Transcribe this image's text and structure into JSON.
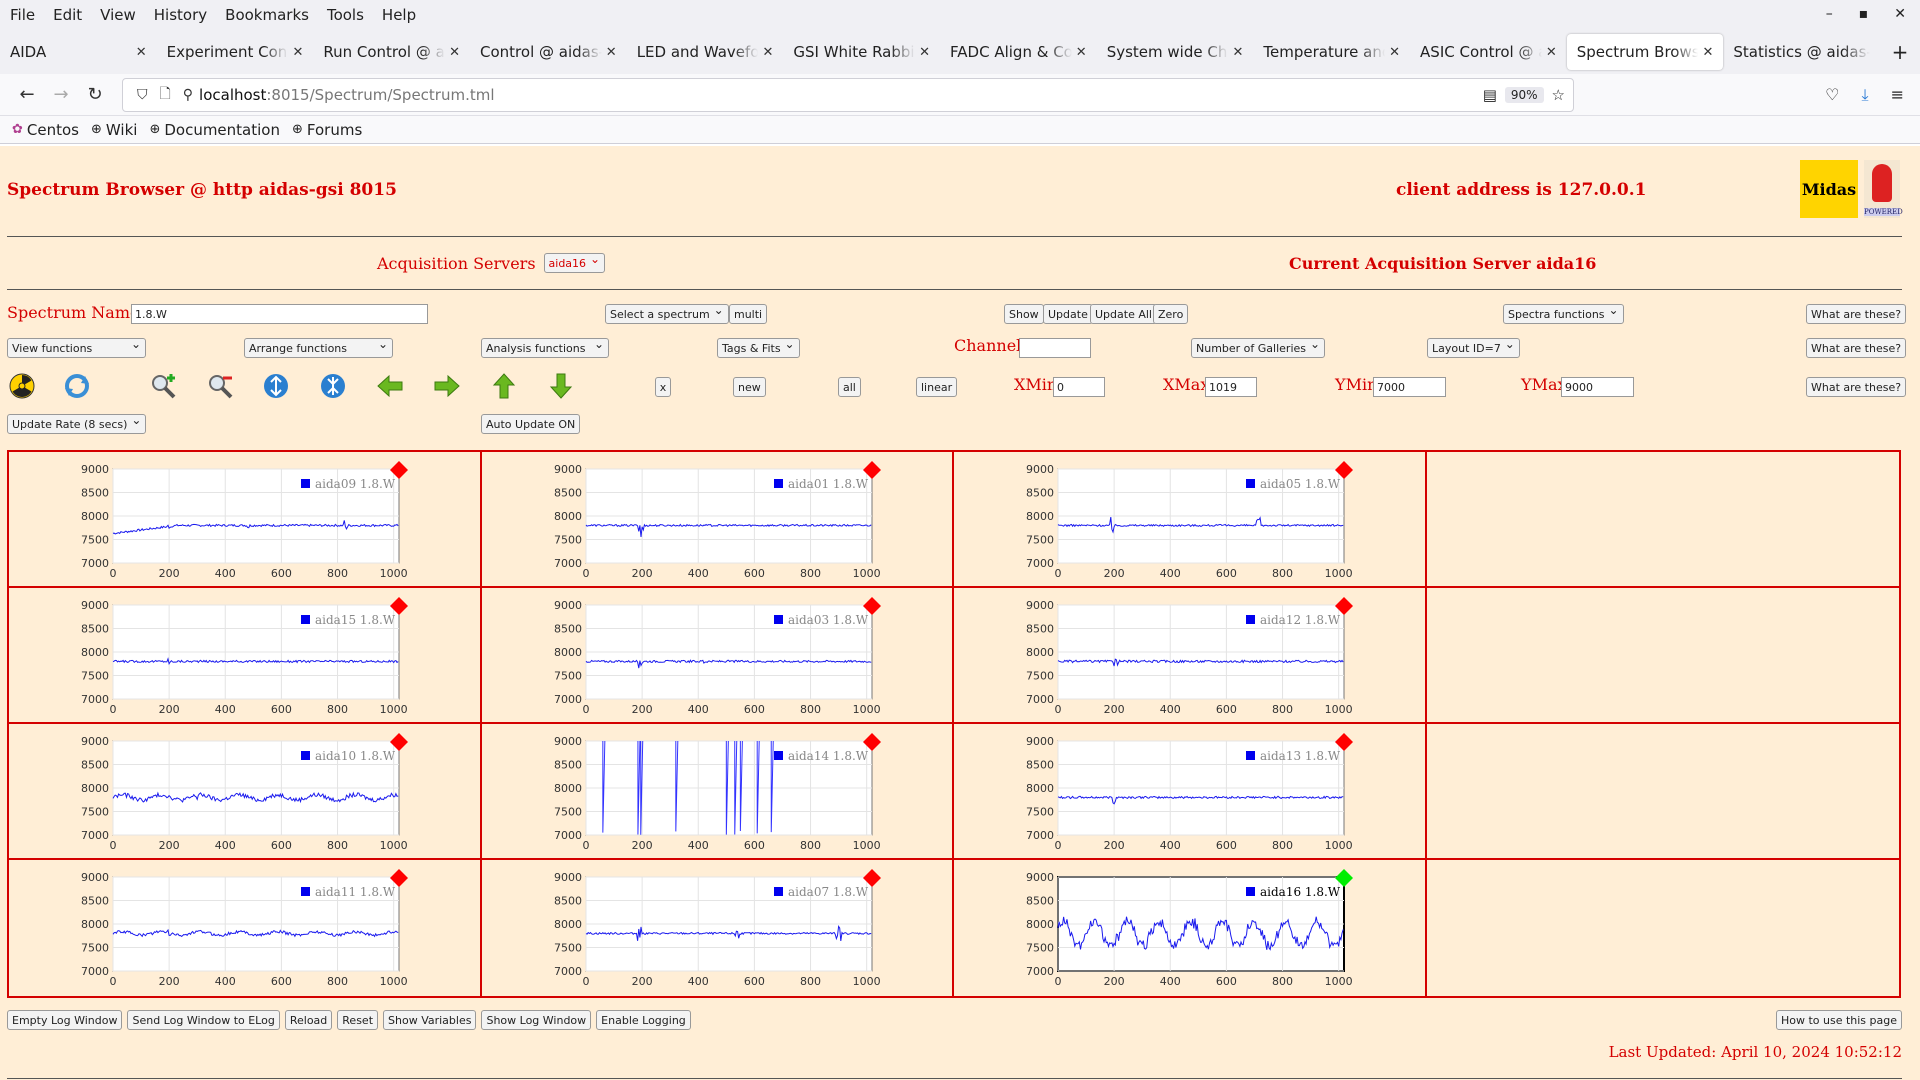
{
  "menu": [
    "File",
    "Edit",
    "View",
    "History",
    "Bookmarks",
    "Tools",
    "Help"
  ],
  "tabs": [
    {
      "label": "AIDA",
      "active": false
    },
    {
      "label": "Experiment Control",
      "active": false
    },
    {
      "label": "Run Control @ aidas",
      "active": false
    },
    {
      "label": "Control @ aidas-gsi",
      "active": false
    },
    {
      "label": "LED and Waveforms",
      "active": false
    },
    {
      "label": "GSI White Rabbit T",
      "active": false
    },
    {
      "label": "FADC Align & Control",
      "active": false
    },
    {
      "label": "System wide Checks",
      "active": false
    },
    {
      "label": "Temperature and s",
      "active": false
    },
    {
      "label": "ASIC Control @ aidas",
      "active": false
    },
    {
      "label": "Spectrum Browser",
      "active": true
    },
    {
      "label": "Statistics @ aidas-",
      "active": false
    }
  ],
  "url": {
    "host": "localhost",
    "path": ":8015/Spectrum/Spectrum.tml",
    "zoom": "90%"
  },
  "bookmarks": [
    "Centos",
    "Wiki",
    "Documentation",
    "Forums"
  ],
  "header": {
    "title": "Spectrum Browser @ http aidas-gsi 8015",
    "client": "client address is 127.0.0.1",
    "logo_text": "Midas",
    "logo2_text": "POWERED"
  },
  "acq": {
    "label": "Acquisition Servers",
    "value": "aida16",
    "current": "Current Acquisition Server aida16"
  },
  "row1": {
    "spectrum_name_label": "Spectrum Name:",
    "spectrum_name_value": "1.8.W",
    "select_spectrum": "Select a spectrum",
    "multi": "multi",
    "show": "Show",
    "update": "Update",
    "update_all": "Update All",
    "zero": "Zero",
    "spectra_functions": "Spectra functions",
    "what": "What are these?"
  },
  "row2": {
    "view": "View functions",
    "arrange": "Arrange functions",
    "analysis": "Analysis functions",
    "tags": "Tags & Fits",
    "channel_label": "Channel:",
    "channel_value": "",
    "galleries": "Number of Galleries",
    "layout": "Layout ID=7",
    "what": "What are these?"
  },
  "row3": {
    "x": "x",
    "new": "new",
    "all": "all",
    "linear": "linear",
    "xmin_label": "XMin",
    "xmin": "0",
    "xmax_label": "XMax",
    "xmax": "1019",
    "ymin_label": "YMin",
    "ymin": "7000",
    "ymax_label": "YMax",
    "ymax": "9000",
    "what": "What are these?"
  },
  "row4": {
    "update_rate": "Update Rate (8 secs)",
    "auto_update": "Auto Update ON"
  },
  "icons": [
    "radiation-icon",
    "refresh-icon",
    "zoom-in-icon",
    "zoom-out-icon",
    "expand-y-icon",
    "compress-y-icon",
    "left-arrow-icon",
    "right-arrow-icon",
    "up-arrow-icon",
    "down-arrow-icon"
  ],
  "plots": [
    {
      "name": "aida09 1.8.W",
      "marker": "#ff0000",
      "selected": false,
      "style": "steady",
      "amp": 45,
      "bumps": [
        [
          200,
          8,
          60
        ],
        [
          480,
          6,
          90
        ],
        [
          830,
          8,
          140
        ]
      ],
      "drift": true
    },
    {
      "name": "aida01 1.8.W",
      "marker": "#ff0000",
      "selected": false,
      "style": "steady",
      "amp": 40,
      "bumps": [
        [
          195,
          10,
          340
        ]
      ]
    },
    {
      "name": "aida05 1.8.W",
      "marker": "#ff0000",
      "selected": false,
      "style": "steady",
      "amp": 40,
      "bumps": [
        [
          195,
          8,
          180
        ],
        [
          715,
          8,
          200
        ]
      ]
    },
    null,
    {
      "name": "aida15 1.8.W",
      "marker": "#ff0000",
      "selected": false,
      "style": "steady",
      "amp": 45,
      "bumps": [
        [
          200,
          6,
          80
        ]
      ]
    },
    {
      "name": "aida03 1.8.W",
      "marker": "#ff0000",
      "selected": false,
      "style": "steady",
      "amp": 45,
      "bumps": [
        [
          195,
          8,
          120
        ],
        [
          420,
          6,
          70
        ]
      ]
    },
    {
      "name": "aida12 1.8.W",
      "marker": "#ff0000",
      "selected": false,
      "style": "steady",
      "amp": 50,
      "bumps": [
        [
          205,
          8,
          100
        ],
        [
          470,
          6,
          80
        ]
      ]
    },
    null,
    {
      "name": "aida10 1.8.W",
      "marker": "#ff0000",
      "selected": false,
      "style": "wavy",
      "amp": 90,
      "bumps": [
        [
          300,
          8,
          160
        ]
      ]
    },
    {
      "name": "aida14 1.8.W",
      "marker": "#ff0000",
      "selected": false,
      "style": "spiky",
      "amp": 0,
      "bumps": []
    },
    {
      "name": "aida13 1.8.W",
      "marker": "#ff0000",
      "selected": false,
      "style": "steady",
      "amp": 45,
      "bumps": [
        [
          200,
          8,
          200
        ]
      ]
    },
    null,
    {
      "name": "aida11 1.8.W",
      "marker": "#ff0000",
      "selected": false,
      "style": "wavy",
      "amp": 60,
      "bumps": [
        [
          200,
          8,
          100
        ]
      ]
    },
    {
      "name": "aida07 1.8.W",
      "marker": "#ff0000",
      "selected": false,
      "style": "steady",
      "amp": 40,
      "bumps": [
        [
          190,
          10,
          150
        ],
        [
          535,
          10,
          150
        ],
        [
          900,
          10,
          190
        ]
      ]
    },
    {
      "name": "aida16 1.8.W",
      "marker": "#00ee00",
      "selected": true,
      "style": "oscillating",
      "amp": 300,
      "bumps": []
    },
    null
  ],
  "chart_data": {
    "type": "line",
    "xlim": [
      0,
      1019
    ],
    "ylim": [
      7000,
      9000
    ],
    "xticks": [
      "0",
      "200",
      "400",
      "600",
      "800",
      "1000"
    ],
    "yticks": [
      "9000",
      "8500",
      "8000",
      "7500",
      "7000"
    ],
    "baseline": 7800
  },
  "bottom": [
    "Empty Log Window",
    "Send Log Window to ELog",
    "Reload",
    "Reset",
    "Show Variables",
    "Show Log Window",
    "Enable Logging"
  ],
  "howto": "How to use this page",
  "last_updated": "Last Updated: April 10, 2024 10:52:12"
}
